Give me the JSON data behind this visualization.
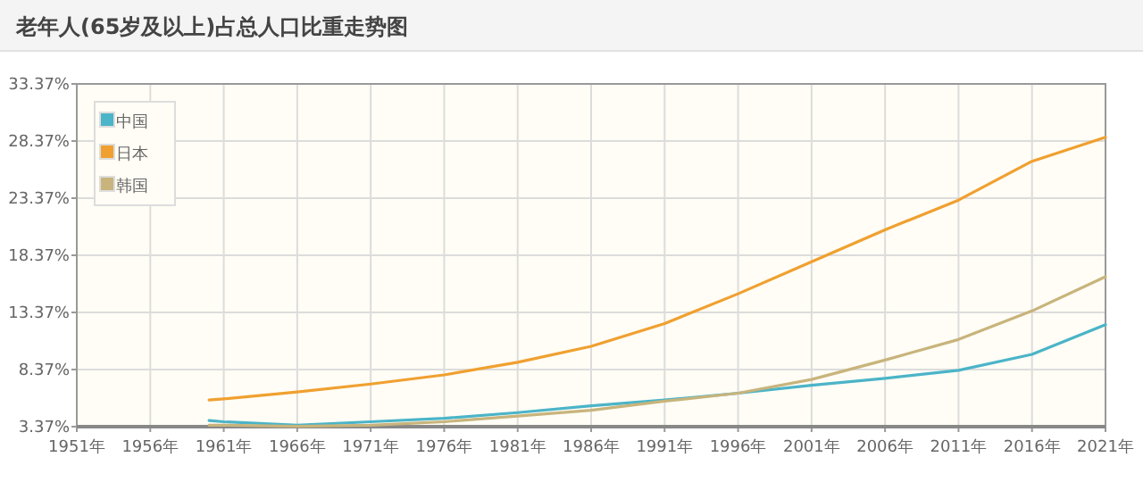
{
  "chart_data": {
    "type": "line",
    "title": "老年人(65岁及以上)占总人口比重走势图",
    "x": [
      1960,
      1961,
      1966,
      1971,
      1976,
      1981,
      1986,
      1991,
      1996,
      2001,
      2006,
      2011,
      2016,
      2021
    ],
    "series": [
      {
        "name": "中国",
        "color": "#4bb4c8",
        "values": [
          3.9,
          3.8,
          3.5,
          3.8,
          4.1,
          4.6,
          5.2,
          5.7,
          6.3,
          7.0,
          7.6,
          8.3,
          9.7,
          12.3
        ]
      },
      {
        "name": "日本",
        "color": "#f0a030",
        "values": [
          5.7,
          5.8,
          6.4,
          7.1,
          7.9,
          9.0,
          10.4,
          12.4,
          15.0,
          17.8,
          20.6,
          23.2,
          26.6,
          28.7
        ]
      },
      {
        "name": "韩国",
        "color": "#c8b47c",
        "values": [
          3.5,
          3.5,
          3.4,
          3.5,
          3.8,
          4.3,
          4.8,
          5.6,
          6.3,
          7.5,
          9.2,
          11.0,
          13.5,
          16.5
        ]
      }
    ],
    "xlim": [
      1951,
      2021
    ],
    "xticks": [
      {
        "value": 1951,
        "label": "1951年"
      },
      {
        "value": 1956,
        "label": "1956年"
      },
      {
        "value": 1961,
        "label": "1961年"
      },
      {
        "value": 1966,
        "label": "1966年"
      },
      {
        "value": 1971,
        "label": "1971年"
      },
      {
        "value": 1976,
        "label": "1976年"
      },
      {
        "value": 1981,
        "label": "1981年"
      },
      {
        "value": 1986,
        "label": "1986年"
      },
      {
        "value": 1991,
        "label": "1991年"
      },
      {
        "value": 1996,
        "label": "1996年"
      },
      {
        "value": 2001,
        "label": "2001年"
      },
      {
        "value": 2006,
        "label": "2006年"
      },
      {
        "value": 2011,
        "label": "2011年"
      },
      {
        "value": 2016,
        "label": "2016年"
      },
      {
        "value": 2021,
        "label": "2021年"
      }
    ],
    "ylim": [
      3.37,
      33.37
    ],
    "yticks": [
      {
        "value": 3.37,
        "label": "3.37%"
      },
      {
        "value": 8.37,
        "label": "8.37%"
      },
      {
        "value": 13.37,
        "label": "13.37%"
      },
      {
        "value": 18.37,
        "label": "18.37%"
      },
      {
        "value": 23.37,
        "label": "23.37%"
      },
      {
        "value": 28.37,
        "label": "28.37%"
      },
      {
        "value": 33.37,
        "label": "33.37%"
      }
    ],
    "grid": true,
    "legend": "top left",
    "marker": "none",
    "line_style": "solid"
  }
}
